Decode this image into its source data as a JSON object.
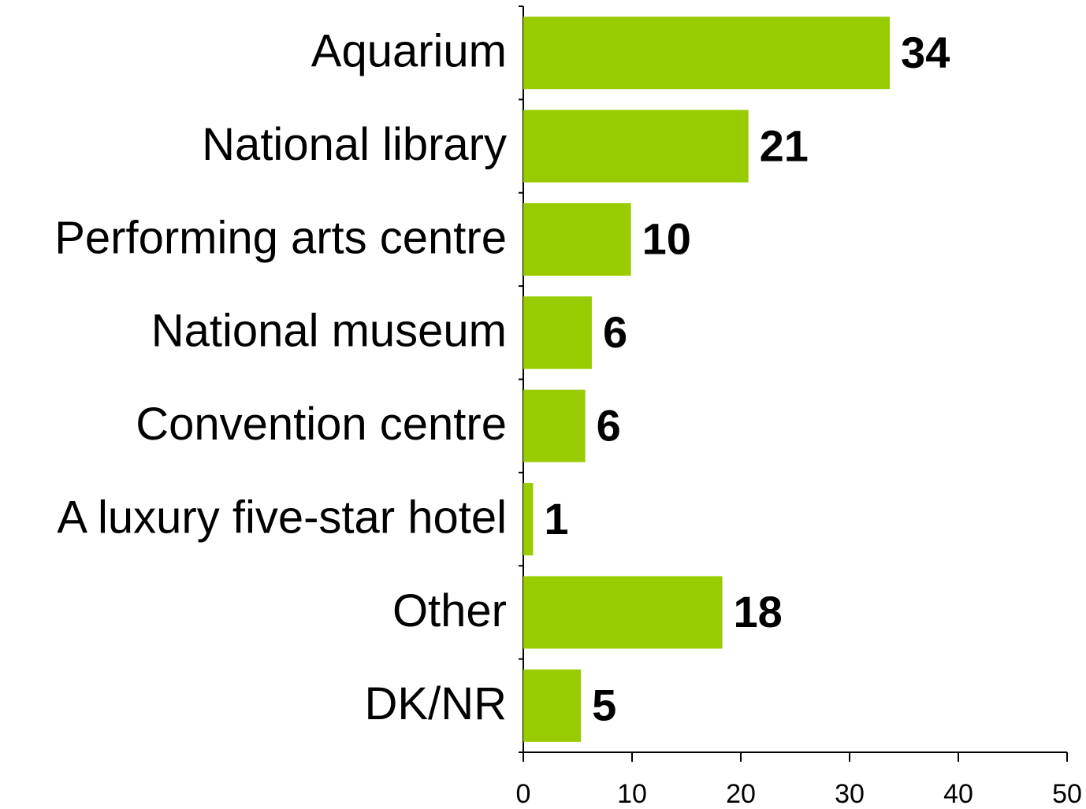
{
  "chart_data": {
    "type": "barh",
    "categories": [
      "Aquarium",
      "National library",
      "Performing arts centre",
      "National museum",
      "Convention centre",
      "A luxury five-star hotel",
      "Other",
      "DK/NR"
    ],
    "values": [
      33.7,
      20.7,
      9.9,
      6.3,
      5.7,
      0.9,
      18.3,
      5.3
    ],
    "value_labels": [
      "34",
      "21",
      "10",
      "6",
      "6",
      "1",
      "18",
      "5"
    ],
    "color": "#99cc00",
    "xlim": [
      0,
      50
    ],
    "xticks": [
      0,
      10,
      20,
      30,
      40,
      50
    ],
    "grid": false
  }
}
